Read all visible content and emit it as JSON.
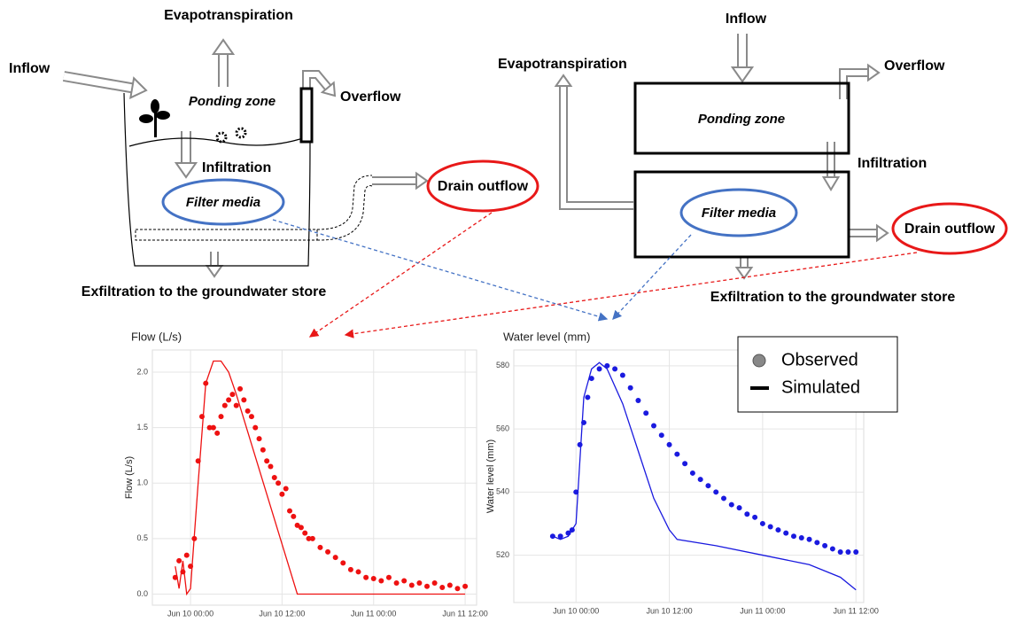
{
  "left_diagram": {
    "evapotranspiration": "Evapotranspiration",
    "inflow": "Inflow",
    "ponding_zone": "Ponding zone",
    "overflow": "Overflow",
    "infiltration": "Infiltration",
    "filter_media": "Filter media",
    "drain_outflow": "Drain outflow",
    "exfiltration": "Exfiltration to the groundwater store"
  },
  "right_diagram": {
    "evapotranspiration": "Evapotranspiration",
    "inflow": "Inflow",
    "ponding_zone": "Ponding zone",
    "overflow": "Overflow",
    "infiltration": "Infiltration",
    "filter_media": "Filter media",
    "drain_outflow": "Drain outflow",
    "exfiltration": "Exfiltration to the groundwater store"
  },
  "chart_data": [
    {
      "type": "line",
      "title": "Flow (L/s)",
      "y_label": "Flow (L/s)",
      "xlim": [
        "Jun 9 19:00",
        "Jun 11 13:30"
      ],
      "xticks": [
        "Jun 10 00:00",
        "Jun 10 12:00",
        "Jun 11 00:00",
        "Jun 11 12:00"
      ],
      "ylim": [
        -0.1,
        2.2
      ],
      "yticks": [
        {
          "value": 0,
          "label": "0.0"
        },
        0.5,
        {
          "value": 1,
          "label": "1.0"
        },
        1.5,
        {
          "value": 2,
          "label": "2.0"
        }
      ],
      "grid": true,
      "series": [
        {
          "type": "scatter",
          "color": "#ee1111",
          "x": [
            "Jun 9 22:00",
            "Jun 9 22:30",
            "Jun 9 23:00",
            "Jun 9 23:30",
            "Jun 10 00:00",
            "Jun 10 00:30",
            "Jun 10 01:00",
            "Jun 10 01:30",
            "Jun 10 02:00",
            "Jun 10 02:30",
            "Jun 10 03:00",
            "Jun 10 03:30",
            "Jun 10 04:00",
            "Jun 10 04:30",
            "Jun 10 05:00",
            "Jun 10 05:30",
            "Jun 10 06:00",
            "Jun 10 06:30",
            "Jun 10 07:00",
            "Jun 10 07:30",
            "Jun 10 08:00",
            "Jun 10 08:30",
            "Jun 10 09:00",
            "Jun 10 09:30",
            "Jun 10 10:00",
            "Jun 10 10:30",
            "Jun 10 11:00",
            "Jun 10 11:30",
            "Jun 10 12:00",
            "Jun 10 12:30",
            "Jun 10 13:00",
            "Jun 10 13:30",
            "Jun 10 14:00",
            "Jun 10 14:30",
            "Jun 10 15:00",
            "Jun 10 15:30",
            "Jun 10 16:00",
            "Jun 10 17:00",
            "Jun 10 18:00",
            "Jun 10 19:00",
            "Jun 10 20:00",
            "Jun 10 21:00",
            "Jun 10 22:00",
            "Jun 10 23:00",
            "Jun 11 00:00",
            "Jun 11 01:00",
            "Jun 11 02:00",
            "Jun 11 03:00",
            "Jun 11 04:00",
            "Jun 11 05:00",
            "Jun 11 06:00",
            "Jun 11 07:00",
            "Jun 11 08:00",
            "Jun 11 09:00",
            "Jun 11 10:00",
            "Jun 11 11:00",
            "Jun 11 12:00"
          ],
          "values": [
            0.15,
            0.3,
            0.2,
            0.35,
            0.25,
            0.5,
            1.2,
            1.6,
            1.9,
            1.5,
            1.5,
            1.45,
            1.6,
            1.7,
            1.75,
            1.8,
            1.7,
            1.85,
            1.75,
            1.65,
            1.6,
            1.5,
            1.4,
            1.3,
            1.2,
            1.15,
            1.05,
            1.0,
            0.9,
            0.95,
            0.75,
            0.7,
            0.62,
            0.6,
            0.55,
            0.5,
            0.5,
            0.42,
            0.38,
            0.33,
            0.28,
            0.22,
            0.2,
            0.15,
            0.14,
            0.12,
            0.15,
            0.1,
            0.12,
            0.08,
            0.1,
            0.07,
            0.1,
            0.06,
            0.08,
            0.05,
            0.07
          ]
        },
        {
          "type": "line",
          "color": "#ee1111",
          "x": [
            "Jun 9 22:00",
            "Jun 9 22:30",
            "Jun 9 23:00",
            "Jun 9 23:30",
            "Jun 10 00:00",
            "Jun 10 01:00",
            "Jun 10 02:00",
            "Jun 10 03:00",
            "Jun 10 04:00",
            "Jun 10 05:00",
            "Jun 10 06:00",
            "Jun 10 08:00",
            "Jun 10 10:00",
            "Jun 10 12:00",
            "Jun 10 14:00",
            "Jun 11 12:00"
          ],
          "values": [
            0.25,
            0.05,
            0.3,
            0.0,
            0.05,
            1.0,
            1.9,
            2.1,
            2.1,
            2.0,
            1.8,
            1.35,
            0.9,
            0.45,
            0.0,
            0.0
          ]
        }
      ]
    },
    {
      "type": "line",
      "title": "Water level (mm)",
      "y_label": "Water level (mm)",
      "xlim": [
        "Jun 9 16:00",
        "Jun 11 13:00"
      ],
      "xticks": [
        "Jun 10 00:00",
        "Jun 10 12:00",
        "Jun 11 00:00",
        "Jun 11 12:00"
      ],
      "ylim": [
        505,
        585
      ],
      "yticks": [
        520,
        540,
        560,
        580
      ],
      "grid": true,
      "legend": "top-right",
      "series": [
        {
          "name": "Observed",
          "type": "scatter",
          "color": "#1a1adf",
          "x": [
            "Jun 9 21:00",
            "Jun 9 22:00",
            "Jun 9 23:00",
            "Jun 9 23:30",
            "Jun 10 00:00",
            "Jun 10 00:30",
            "Jun 10 01:00",
            "Jun 10 01:30",
            "Jun 10 02:00",
            "Jun 10 03:00",
            "Jun 10 04:00",
            "Jun 10 05:00",
            "Jun 10 06:00",
            "Jun 10 07:00",
            "Jun 10 08:00",
            "Jun 10 09:00",
            "Jun 10 10:00",
            "Jun 10 11:00",
            "Jun 10 12:00",
            "Jun 10 13:00",
            "Jun 10 14:00",
            "Jun 10 15:00",
            "Jun 10 16:00",
            "Jun 10 17:00",
            "Jun 10 18:00",
            "Jun 10 19:00",
            "Jun 10 20:00",
            "Jun 10 21:00",
            "Jun 10 22:00",
            "Jun 10 23:00",
            "Jun 11 00:00",
            "Jun 11 01:00",
            "Jun 11 02:00",
            "Jun 11 03:00",
            "Jun 11 04:00",
            "Jun 11 05:00",
            "Jun 11 06:00",
            "Jun 11 07:00",
            "Jun 11 08:00",
            "Jun 11 09:00",
            "Jun 11 10:00",
            "Jun 11 11:00",
            "Jun 11 12:00"
          ],
          "values": [
            526,
            526,
            527,
            528,
            540,
            555,
            562,
            570,
            576,
            579,
            580,
            579,
            577,
            573,
            569,
            565,
            561,
            558,
            555,
            552,
            549,
            546,
            544,
            542,
            540,
            538,
            536,
            535,
            533,
            532,
            530,
            529,
            528,
            527,
            526,
            525.5,
            525,
            524,
            523,
            522,
            521,
            521,
            521
          ]
        },
        {
          "name": "Simulated",
          "type": "line",
          "color": "#1a1adf",
          "x": [
            "Jun 9 21:00",
            "Jun 9 22:00",
            "Jun 9 23:00",
            "Jun 10 00:00",
            "Jun 10 01:00",
            "Jun 10 02:00",
            "Jun 10 03:00",
            "Jun 10 04:00",
            "Jun 10 06:00",
            "Jun 10 08:00",
            "Jun 10 10:00",
            "Jun 10 12:00",
            "Jun 10 13:00",
            "Jun 10 18:00",
            "Jun 11 00:00",
            "Jun 11 06:00",
            "Jun 11 10:00",
            "Jun 11 12:00"
          ],
          "values": [
            526,
            525,
            526,
            530,
            570,
            579,
            581,
            579,
            568,
            553,
            538,
            528,
            525,
            523,
            520,
            517,
            513,
            509
          ]
        }
      ]
    }
  ]
}
